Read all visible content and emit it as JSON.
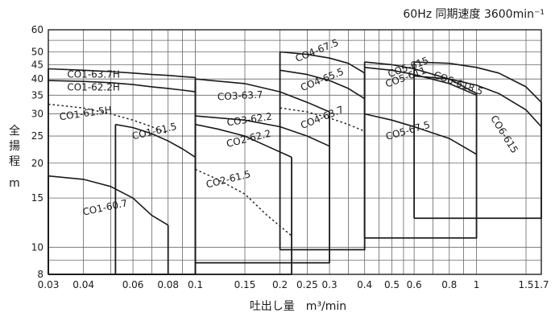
{
  "chart_data": {
    "type": "line",
    "title": "60Hz 同期速度 3600min⁻¹",
    "xlabel": "吐出し量　m³/min",
    "ylabel": "全揚程 m",
    "ylabel_chars": [
      "全",
      "揚",
      "程"
    ],
    "ylabel_unit": "m",
    "x_scale": "log",
    "y_scale": "log",
    "xlim": [
      0.03,
      1.7
    ],
    "ylim": [
      8,
      60
    ],
    "x_ticks": [
      0.03,
      0.04,
      0.06,
      0.08,
      0.1,
      0.15,
      0.2,
      0.25,
      0.3,
      0.4,
      0.5,
      0.6,
      0.8,
      1,
      1.5,
      1.7
    ],
    "x_tick_labels": [
      "0.03",
      "0.04",
      "0.06",
      "0.08",
      "0.1",
      "0.15",
      "0.2",
      "0.25",
      "0.3",
      "0.4",
      "0.5",
      "0.6",
      "0.8",
      "1",
      "1.5",
      "1.7"
    ],
    "y_ticks": [
      8,
      10,
      15,
      20,
      25,
      30,
      35,
      40,
      45,
      50,
      60
    ],
    "y_tick_labels": [
      "8",
      "10",
      "15",
      "20",
      "25",
      "30",
      "35",
      "40",
      "45",
      "50",
      "60"
    ],
    "grid_x": [
      0.03,
      0.04,
      0.05,
      0.06,
      0.07,
      0.08,
      0.09,
      0.1,
      0.15,
      0.2,
      0.25,
      0.3,
      0.35,
      0.4,
      0.45,
      0.5,
      0.55,
      0.6,
      0.7,
      0.8,
      0.9,
      1,
      1.5,
      1.7
    ],
    "grid_y": [
      8,
      9,
      10,
      15,
      20,
      25,
      30,
      35,
      40,
      45,
      50,
      55,
      60
    ],
    "grid": true,
    "series": [
      {
        "name": "CO1-60.7",
        "x": [
          0.03,
          0.04,
          0.05,
          0.06,
          0.07,
          0.08
        ],
        "y": [
          18,
          17.5,
          16.5,
          15,
          13,
          12
        ],
        "label_pos": [
          0.04,
          13
        ],
        "label_angle": -12
      },
      {
        "name": "CO1-61.5",
        "x": [
          0.052,
          0.06,
          0.07,
          0.08,
          0.09,
          0.1
        ],
        "y": [
          27.5,
          26.8,
          25.5,
          24,
          22.5,
          21
        ],
        "label_pos": [
          0.06,
          24.3
        ],
        "label_angle": -13
      },
      {
        "name": "CO1-61.5H",
        "x": [
          0.03,
          0.04,
          0.05,
          0.06,
          0.07,
          0.08
        ],
        "y": [
          32.5,
          31.5,
          30,
          28.5,
          27,
          25.5
        ],
        "label_pos": [
          0.033,
          28.5
        ],
        "label_angle": -8
      },
      {
        "name": "CO1-62.2H",
        "x": [
          0.03,
          0.04,
          0.05,
          0.06,
          0.07,
          0.08,
          0.09,
          0.1
        ],
        "y": [
          39.5,
          39.2,
          38.8,
          38.2,
          37.5,
          37,
          36.5,
          36
        ],
        "label_pos": [
          0.035,
          36.4
        ],
        "label_angle": 0
      },
      {
        "name": "CO1-63.7H",
        "x": [
          0.03,
          0.04,
          0.05,
          0.06,
          0.07,
          0.08,
          0.09,
          0.1
        ],
        "y": [
          43.5,
          43,
          42.5,
          42,
          41.5,
          41.2,
          40.8,
          40.5
        ],
        "label_pos": [
          0.035,
          40.4
        ],
        "label_angle": 0
      },
      {
        "name": "CO2-61.5",
        "x": [
          0.1,
          0.12,
          0.15,
          0.18,
          0.22
        ],
        "y": [
          19,
          17.5,
          15.5,
          13,
          11
        ],
        "label_pos": [
          0.11,
          16.3
        ],
        "label_angle": -14
      },
      {
        "name": "CO2-62.2",
        "x": [
          0.1,
          0.12,
          0.15,
          0.18,
          0.22
        ],
        "y": [
          27.5,
          26.5,
          25,
          23,
          21
        ],
        "label_pos": [
          0.13,
          22.8
        ],
        "label_angle": -14
      },
      {
        "name": "CO3-62.2",
        "x": [
          0.1,
          0.15,
          0.2,
          0.25,
          0.3
        ],
        "y": [
          29.5,
          28.5,
          27,
          25,
          23
        ],
        "label_pos": [
          0.13,
          27.2
        ],
        "label_angle": -8
      },
      {
        "name": "CO3-63.7",
        "x": [
          0.1,
          0.15,
          0.2,
          0.25,
          0.3
        ],
        "y": [
          40,
          38.5,
          36,
          33,
          30.5
        ],
        "label_pos": [
          0.12,
          33.6
        ],
        "label_angle": -3
      },
      {
        "name": "CO4-63.7",
        "x": [
          0.2,
          0.25,
          0.3,
          0.35,
          0.4
        ],
        "y": [
          31.5,
          30.5,
          29,
          27.5,
          26
        ],
        "label_pos": [
          0.24,
          26.5
        ],
        "label_angle": -22
      },
      {
        "name": "CO4-65.5",
        "x": [
          0.2,
          0.25,
          0.3,
          0.35,
          0.4
        ],
        "y": [
          43,
          41.5,
          39.5,
          37,
          34
        ],
        "label_pos": [
          0.24,
          36.2
        ],
        "label_angle": -22
      },
      {
        "name": "CO4-67.5",
        "x": [
          0.2,
          0.25,
          0.3,
          0.35,
          0.4
        ],
        "y": [
          50,
          49,
          47.5,
          45.5,
          42
        ],
        "label_pos": [
          0.23,
          46
        ],
        "label_angle": -22
      },
      {
        "name": "CO5-67.5",
        "x": [
          0.4,
          0.5,
          0.6,
          0.8,
          1
        ],
        "y": [
          30,
          28.5,
          27,
          24.5,
          21.5
        ],
        "label_pos": [
          0.48,
          24.2
        ],
        "label_angle": -16
      },
      {
        "name": "CO5-611",
        "x": [
          0.4,
          0.5,
          0.6,
          0.8,
          1
        ],
        "y": [
          44,
          43,
          41.5,
          38.5,
          35
        ],
        "label_pos": [
          0.48,
          37.3
        ],
        "label_angle": -20
      },
      {
        "name": "CO5-615",
        "x": [
          0.4,
          0.5,
          0.6,
          0.8,
          1
        ],
        "y": [
          46,
          45,
          43.5,
          40,
          35.5
        ],
        "label_pos": [
          0.49,
          40.5
        ],
        "label_angle": -20
      },
      {
        "name": "CO6-615",
        "x": [
          0.6,
          0.8,
          1,
          1.2,
          1.5,
          1.7
        ],
        "y": [
          41,
          40,
          38,
          35.5,
          31,
          27
        ],
        "label_pos": [
          1.12,
          29
        ],
        "label_angle": 58
      },
      {
        "name": "CO6-618.5",
        "x": [
          0.6,
          0.8,
          1,
          1.2,
          1.5,
          1.7
        ],
        "y": [
          46,
          45.5,
          44,
          42,
          37.5,
          33
        ],
        "label_pos": [
          0.7,
          40.5
        ],
        "label_angle": 20
      }
    ]
  }
}
